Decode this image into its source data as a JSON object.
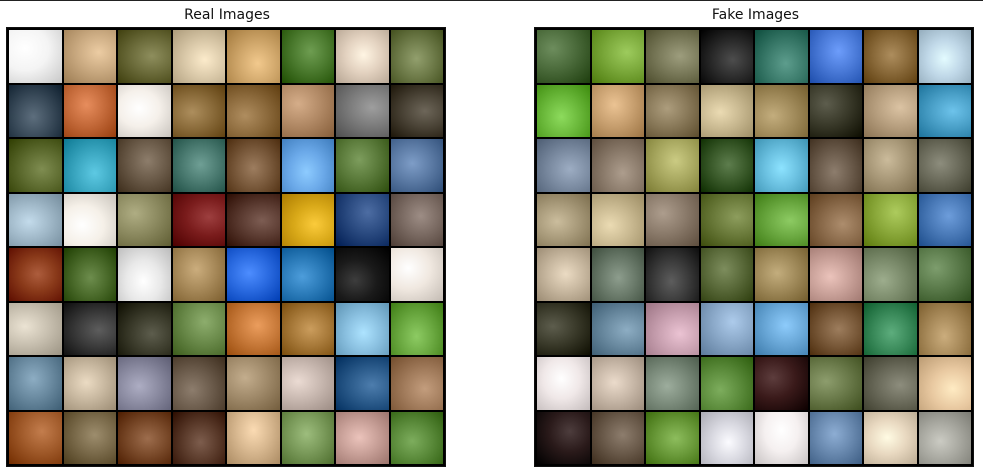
{
  "panels": {
    "real": {
      "title": "Real Images"
    },
    "fake": {
      "title": "Fake Images"
    }
  },
  "palette": {
    "real": [
      [
        "#f4f4f4",
        "#c9a980",
        "#6b6b3a",
        "#d9c8a8",
        "#cfa66a",
        "#4b7a2e",
        "#e3d2c0",
        "#6f7c4a"
      ],
      [
        "#3a4b5a",
        "#c46a3a",
        "#f5f0ea",
        "#8a6b3a",
        "#8c6a3c",
        "#b28a66",
        "#7b7b7b",
        "#4a4336"
      ],
      [
        "#5c6a2e",
        "#3aa6c0",
        "#6a5a48",
        "#4c7c72",
        "#7a5a3c",
        "#6aa8e8",
        "#5a7a3a",
        "#5b7aa4"
      ],
      [
        "#a0b8c8",
        "#f5f0e8",
        "#8c8a60",
        "#7a1c1c",
        "#5a3a30",
        "#d8a818",
        "#2a4a80",
        "#7a6a62"
      ],
      [
        "#8a3a1a",
        "#4a6a2a",
        "#e8e8e8",
        "#a88a5a",
        "#2a6ae0",
        "#2a7ab8",
        "#1a1a1a",
        "#f0e8e0"
      ],
      [
        "#c8c0b0",
        "#3a3a3a",
        "#3a3a2a",
        "#6a8a4a",
        "#c87a3a",
        "#a87a3a",
        "#8ac0e0",
        "#6aa840"
      ],
      [
        "#6a8aa0",
        "#c8b8a0",
        "#8a8aa0",
        "#6a5a4a",
        "#a08a6a",
        "#c8b8b0",
        "#2a5a8a",
        "#a07a5a"
      ],
      [
        "#a05a2a",
        "#7a6a4a",
        "#7a4a2a",
        "#5a3a2a",
        "#d8b890",
        "#7a9a5a",
        "#c8a098",
        "#5a8a3a"
      ]
    ],
    "fake": [
      [
        "#4a6a3a",
        "#7aa83a",
        "#7a7a5a",
        "#2a2a2a",
        "#3a7a6a",
        "#4a7ad8",
        "#8a6a3a",
        "#c0d8e8"
      ],
      [
        "#6ab83a",
        "#c8a070",
        "#8a7a5a",
        "#c8b890",
        "#a08a5a",
        "#3a3a2a",
        "#b8a080",
        "#4aa0c8"
      ],
      [
        "#7a8aa0",
        "#8a7a6a",
        "#a8a860",
        "#3a5a2a",
        "#6ac0e0",
        "#6a5a4a",
        "#a89878",
        "#6a6a5a"
      ],
      [
        "#a89a7a",
        "#c8b890",
        "#8a7a6a",
        "#6a7a3a",
        "#6aa840",
        "#8a6a4a",
        "#8aa83a",
        "#4a7ab8"
      ],
      [
        "#c8b8a0",
        "#6a7a6a",
        "#3a3a3a",
        "#5a6a3a",
        "#a08a5a",
        "#c8a098",
        "#7a8a6a",
        "#5a7a4a"
      ],
      [
        "#3a3a2a",
        "#6a8aa0",
        "#c8a0b0",
        "#8aa8c8",
        "#6aa8d8",
        "#7a5a3a",
        "#3a8a5a",
        "#a88a5a"
      ],
      [
        "#f0e8e8",
        "#c8b8a8",
        "#7a8a7a",
        "#5a8a3a",
        "#3a1a1a",
        "#6a7a4a",
        "#6a6a5a",
        "#e8c8a0"
      ],
      [
        "#2a1a1a",
        "#6a5a4a",
        "#6a9a3a",
        "#d8d8e0",
        "#f5f0f0",
        "#6a8ab0",
        "#e8d8c0",
        "#a8a8a0"
      ]
    ]
  }
}
